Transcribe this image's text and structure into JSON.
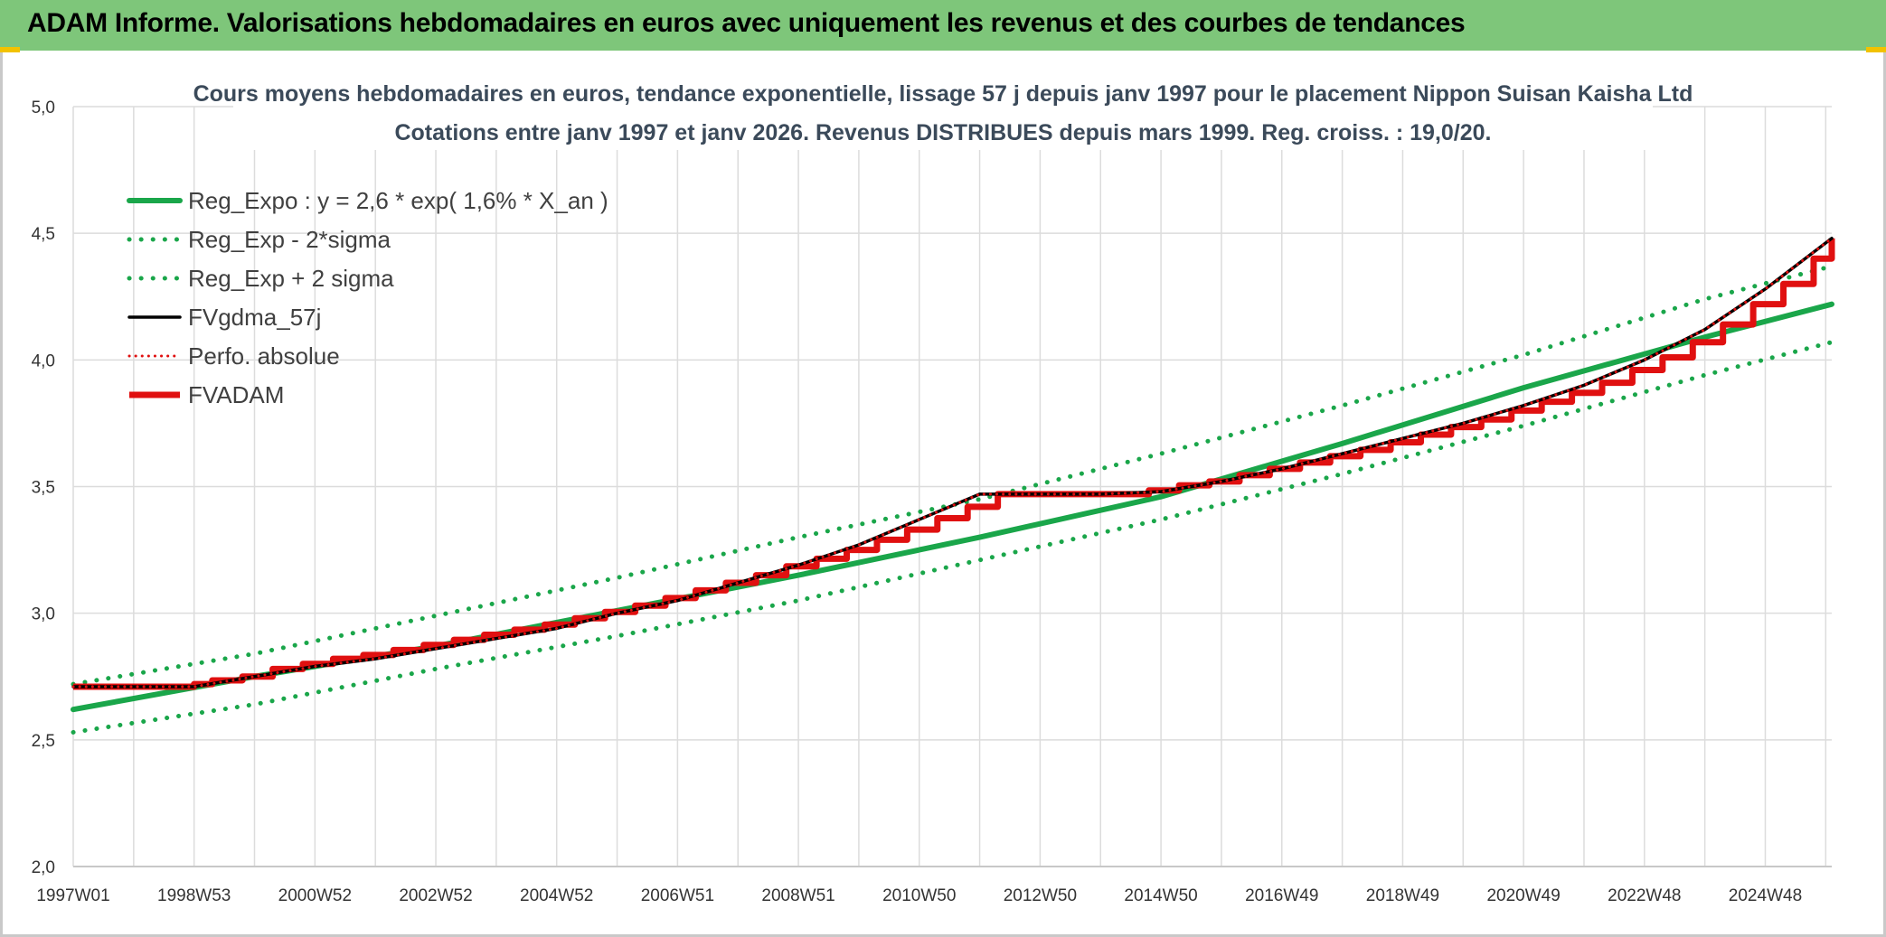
{
  "header": {
    "title": "ADAM Informe. Valorisations hebdomadaires en euros avec uniquement les revenus et des courbes de tendances",
    "background": "#7ec67a"
  },
  "chart_data": {
    "type": "line",
    "title_line1": "Cours moyens hebdomadaires en euros, tendance exponentielle, lissage 57 j depuis janv 1997 pour le placement Nippon Suisan Kaisha Ltd",
    "title_line2": "Cotations entre janv 1997 et janv 2026. Revenus DISTRIBUES depuis mars 1999. Reg. croiss. : 19,0/20.",
    "xlabel": "",
    "ylabel": "",
    "xlim": [
      1997.0,
      2026.1
    ],
    "ylim": [
      2.0,
      5.0
    ],
    "grid": true,
    "legend_position": "top-left",
    "x_ticks": [
      {
        "label": "1997W01",
        "x": 1997.0
      },
      {
        "label": "1998W53",
        "x": 1999.0
      },
      {
        "label": "2000W52",
        "x": 2001.0
      },
      {
        "label": "2002W52",
        "x": 2003.0
      },
      {
        "label": "2004W52",
        "x": 2005.0
      },
      {
        "label": "2006W51",
        "x": 2007.0
      },
      {
        "label": "2008W51",
        "x": 2009.0
      },
      {
        "label": "2010W50",
        "x": 2011.0
      },
      {
        "label": "2012W50",
        "x": 2013.0
      },
      {
        "label": "2014W50",
        "x": 2015.0
      },
      {
        "label": "2016W49",
        "x": 2017.0
      },
      {
        "label": "2018W49",
        "x": 2019.0
      },
      {
        "label": "2020W49",
        "x": 2021.0
      },
      {
        "label": "2022W48",
        "x": 2023.0
      },
      {
        "label": "2024W48",
        "x": 2025.0
      }
    ],
    "y_ticks": [
      {
        "label": "5,0",
        "y": 5.0
      },
      {
        "label": "4,5",
        "y": 4.5
      },
      {
        "label": "4,0",
        "y": 4.0
      },
      {
        "label": "3,5",
        "y": 3.5
      },
      {
        "label": "3,0",
        "y": 3.0
      },
      {
        "label": "2,5",
        "y": 2.5
      },
      {
        "label": "2,0",
        "y": 2.0
      }
    ],
    "series": [
      {
        "name": "Reg_Expo : y = 2,6 * exp( 1,6% *  X_an )",
        "color": "#1aa64a",
        "style": "solid",
        "x": [
          1997.0,
          2000.0,
          2003.0,
          2006.0,
          2009.0,
          2012.0,
          2015.0,
          2018.0,
          2021.0,
          2024.0,
          2026.1
        ],
        "y": [
          2.62,
          2.75,
          2.87,
          3.01,
          3.15,
          3.3,
          3.46,
          3.67,
          3.89,
          4.09,
          4.22
        ]
      },
      {
        "name": "Reg_Exp - 2*sigma",
        "color": "#1aa64a",
        "style": "dotted",
        "x": [
          1997.0,
          2000.0,
          2003.0,
          2006.0,
          2009.0,
          2012.0,
          2015.0,
          2018.0,
          2021.0,
          2024.0,
          2026.1
        ],
        "y": [
          2.53,
          2.64,
          2.78,
          2.91,
          3.05,
          3.21,
          3.37,
          3.55,
          3.74,
          3.94,
          4.07
        ]
      },
      {
        "name": "Reg_Exp + 2 sigma",
        "color": "#1aa64a",
        "style": "dotted",
        "x": [
          1997.0,
          2000.0,
          2003.0,
          2006.0,
          2009.0,
          2012.0,
          2015.0,
          2018.0,
          2021.0,
          2024.0,
          2026.1
        ],
        "y": [
          2.72,
          2.84,
          2.99,
          3.14,
          3.3,
          3.45,
          3.63,
          3.82,
          4.02,
          4.24,
          4.37
        ]
      },
      {
        "name": "FVgdma_57j",
        "color": "#000000",
        "style": "solid",
        "x": [
          1997.0,
          1999.0,
          2000.0,
          2001.0,
          2002.0,
          2003.0,
          2004.0,
          2005.0,
          2006.0,
          2007.0,
          2008.0,
          2009.0,
          2010.0,
          2011.0,
          2012.0,
          2013.0,
          2014.0,
          2015.0,
          2016.0,
          2017.0,
          2018.0,
          2019.0,
          2020.0,
          2021.0,
          2022.0,
          2023.0,
          2024.0,
          2025.0,
          2026.1
        ],
        "y": [
          2.71,
          2.71,
          2.75,
          2.79,
          2.82,
          2.86,
          2.9,
          2.94,
          3.0,
          3.05,
          3.12,
          3.19,
          3.27,
          3.37,
          3.47,
          3.47,
          3.47,
          3.48,
          3.52,
          3.57,
          3.63,
          3.69,
          3.75,
          3.82,
          3.9,
          4.0,
          4.12,
          4.28,
          4.48
        ]
      },
      {
        "name": "Perfo. absolue",
        "color": "#e01010",
        "style": "dotted",
        "x": [
          1997.0,
          1999.0,
          2000.0,
          2001.0,
          2002.0,
          2003.0,
          2004.0,
          2005.0,
          2006.0,
          2007.0,
          2008.0,
          2009.0,
          2010.0,
          2011.0,
          2012.0,
          2013.0,
          2014.0,
          2015.0,
          2016.0,
          2017.0,
          2018.0,
          2019.0,
          2020.0,
          2021.0,
          2022.0,
          2023.0,
          2024.0,
          2025.0,
          2026.1
        ],
        "y": [
          2.71,
          2.71,
          2.75,
          2.79,
          2.82,
          2.86,
          2.9,
          2.94,
          3.0,
          3.05,
          3.12,
          3.19,
          3.27,
          3.37,
          3.47,
          3.47,
          3.47,
          3.48,
          3.52,
          3.57,
          3.63,
          3.69,
          3.75,
          3.82,
          3.9,
          4.0,
          4.12,
          4.28,
          4.48
        ]
      },
      {
        "name": "FVADAM",
        "color": "#e01010",
        "style": "step",
        "x": [
          1997.0,
          1999.0,
          1999.3,
          1999.8,
          2000.3,
          2000.8,
          2001.3,
          2001.8,
          2002.3,
          2002.8,
          2003.3,
          2003.8,
          2004.3,
          2004.8,
          2005.3,
          2005.8,
          2006.3,
          2006.8,
          2007.3,
          2007.8,
          2008.3,
          2008.8,
          2009.3,
          2009.8,
          2010.3,
          2010.8,
          2011.3,
          2011.8,
          2012.3,
          2014.3,
          2014.8,
          2015.3,
          2015.8,
          2016.3,
          2016.8,
          2017.3,
          2017.8,
          2018.3,
          2018.8,
          2019.3,
          2019.8,
          2020.3,
          2020.8,
          2021.3,
          2021.8,
          2022.3,
          2022.8,
          2023.3,
          2023.8,
          2024.3,
          2024.8,
          2025.3,
          2025.8,
          2026.1
        ],
        "y": [
          2.71,
          2.72,
          2.735,
          2.75,
          2.78,
          2.8,
          2.82,
          2.835,
          2.855,
          2.875,
          2.895,
          2.915,
          2.935,
          2.955,
          2.98,
          3.005,
          3.03,
          3.06,
          3.09,
          3.12,
          3.15,
          3.185,
          3.215,
          3.25,
          3.29,
          3.33,
          3.375,
          3.42,
          3.47,
          3.47,
          3.485,
          3.505,
          3.52,
          3.545,
          3.57,
          3.595,
          3.62,
          3.645,
          3.675,
          3.705,
          3.735,
          3.765,
          3.8,
          3.835,
          3.87,
          3.91,
          3.96,
          4.01,
          4.07,
          4.14,
          4.22,
          4.3,
          4.4,
          4.48
        ]
      }
    ]
  }
}
